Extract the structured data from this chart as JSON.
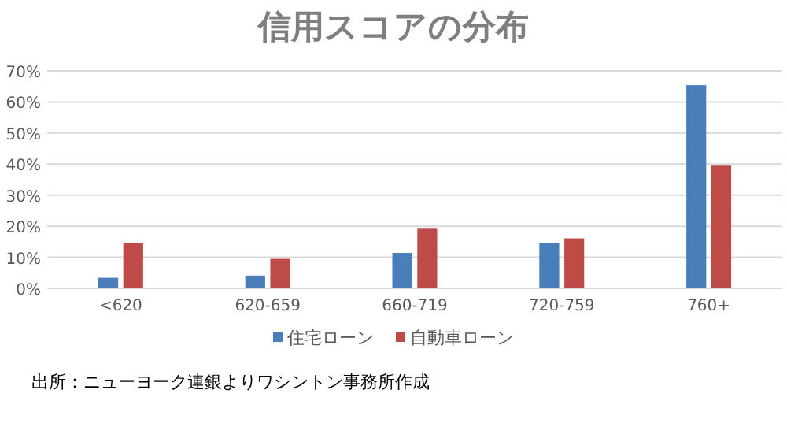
{
  "chart_data": {
    "type": "bar",
    "title": "信用スコアの分布",
    "categories": [
      "<620",
      "620-659",
      "660-719",
      "720-759",
      "760+"
    ],
    "series": [
      {
        "name": "住宅ローン",
        "color": "#4a7ebb",
        "values": [
          3.4,
          4.1,
          11.4,
          14.7,
          65.4
        ]
      },
      {
        "name": "自動車ローン",
        "color": "#be4b48",
        "values": [
          14.7,
          9.5,
          19.2,
          16.1,
          39.5
        ]
      }
    ],
    "ylim": [
      0,
      70
    ],
    "yticks": [
      {
        "value": 0,
        "label": "0%"
      },
      {
        "value": 10,
        "label": "10%"
      },
      {
        "value": 20,
        "label": "20%"
      },
      {
        "value": 30,
        "label": "30%"
      },
      {
        "value": 40,
        "label": "40%"
      },
      {
        "value": 50,
        "label": "50%"
      },
      {
        "value": 60,
        "label": "60%"
      },
      {
        "value": 70,
        "label": "70%"
      }
    ],
    "grid": "y",
    "legend": "bottom",
    "annotations": [
      "出所：ニューヨーク連銀よりワシントン事務所作成"
    ]
  }
}
